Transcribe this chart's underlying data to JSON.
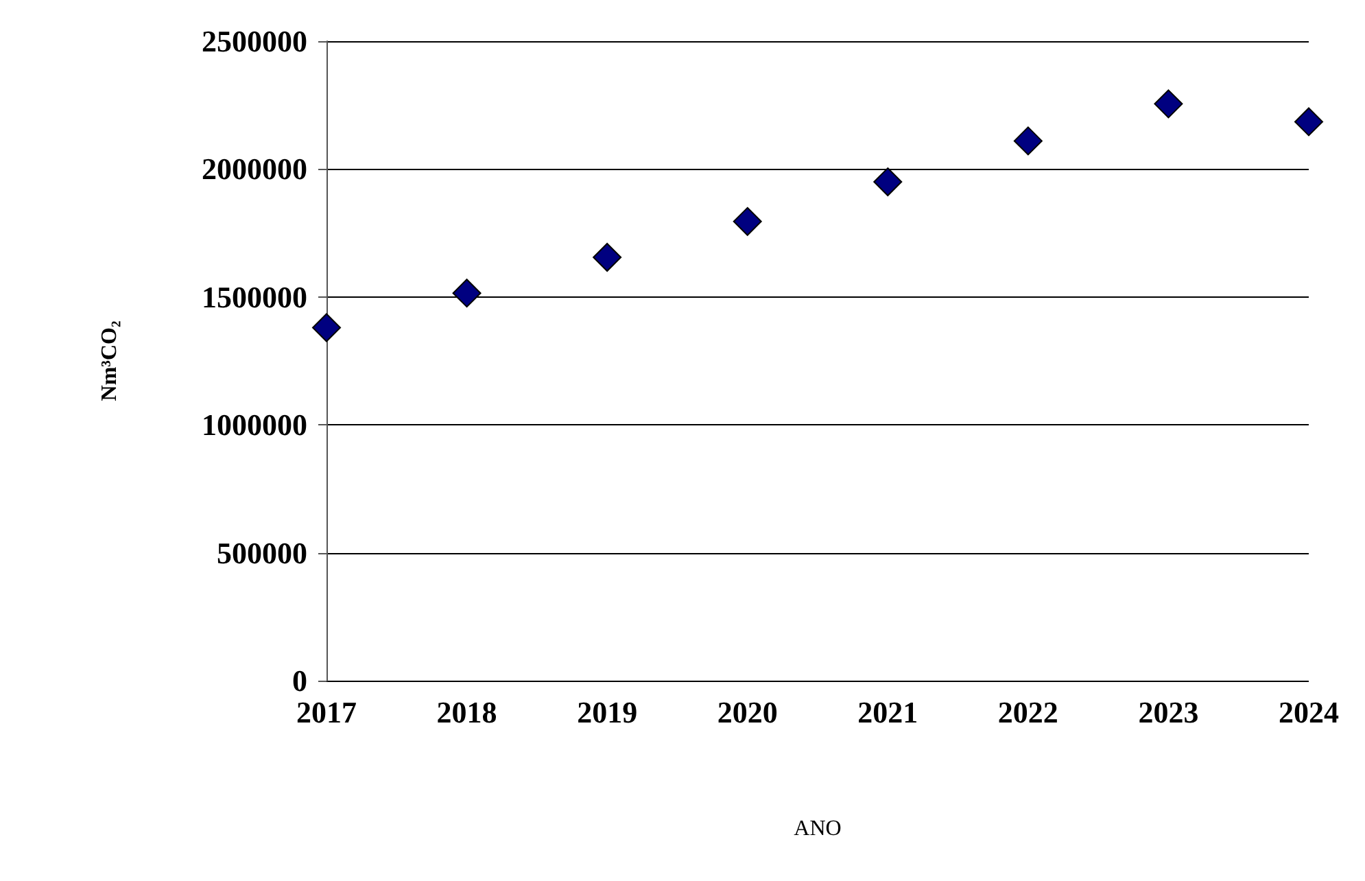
{
  "chart_data": {
    "type": "scatter",
    "xlabel": "ANO",
    "ylabel": "Nm³CO₂",
    "x": [
      2017,
      2018,
      2019,
      2020,
      2021,
      2022,
      2023,
      2024
    ],
    "series": [
      {
        "color": "#000080",
        "values": [
          1380000,
          1515000,
          1655000,
          1795000,
          1950000,
          2110000,
          2255000,
          2185000
        ]
      }
    ],
    "xlim": [
      2017,
      2024
    ],
    "xticks": [
      2017,
      2018,
      2019,
      2020,
      2021,
      2022,
      2023,
      2024
    ],
    "ylim": [
      0,
      2500000
    ],
    "yticks": [
      0,
      500000,
      1000000,
      1500000,
      2000000,
      2500000
    ],
    "grid": "y",
    "marker": "diamond"
  }
}
